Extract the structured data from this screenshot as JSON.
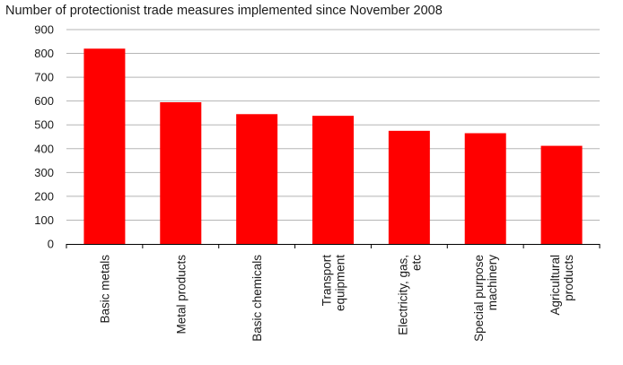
{
  "chart_data": {
    "type": "bar",
    "title": "Number of protectionist trade measures implemented since November 2008",
    "categories": [
      [
        "Basic metals"
      ],
      [
        "Metal products"
      ],
      [
        "Basic chemicals"
      ],
      [
        "Transport",
        "equipment"
      ],
      [
        "Electricity, gas,",
        "etc"
      ],
      [
        "Special purpose",
        "machinery"
      ],
      [
        "Agricultural",
        "products"
      ]
    ],
    "values": [
      820,
      595,
      545,
      538,
      475,
      465,
      412
    ],
    "xlabel": "",
    "ylabel": "",
    "ylim": [
      0,
      900
    ],
    "yticks": [
      0,
      100,
      200,
      300,
      400,
      500,
      600,
      700,
      800,
      900
    ],
    "grid": true,
    "bar_color": "#ff0000"
  }
}
